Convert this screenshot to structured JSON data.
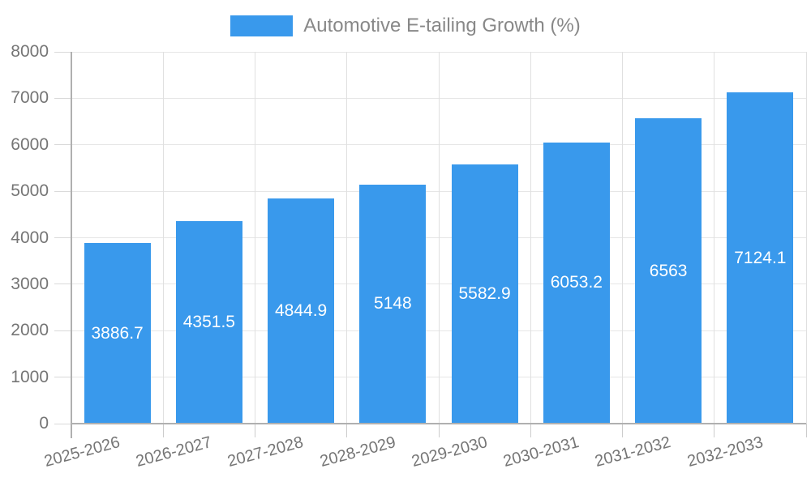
{
  "chart_data": {
    "type": "bar",
    "title": "Automotive E-tailing Growth (%)",
    "legend": {
      "position": "top",
      "entries": [
        {
          "label": "Automotive E-tailing Growth (%)",
          "color": "#3999EC"
        }
      ]
    },
    "categories": [
      "2025-2026",
      "2026-2027",
      "2027-2028",
      "2028-2029",
      "2029-2030",
      "2030-2031",
      "2031-2032",
      "2032-2033"
    ],
    "values": [
      3886.7,
      4351.5,
      4844.9,
      5148,
      5582.9,
      6053.2,
      6563,
      7124.1
    ],
    "bar_value_labels": [
      "3886.7",
      "4351.5",
      "4844.9",
      "5148",
      "5582.9",
      "6053.2",
      "6563",
      "7124.1"
    ],
    "xlabel": "",
    "ylabel": "",
    "ylim": [
      0,
      8000
    ],
    "ytick_step": 1000,
    "ytick_labels": [
      "0",
      "1000",
      "2000",
      "3000",
      "4000",
      "5000",
      "6000",
      "7000",
      "8000"
    ],
    "grid": true,
    "x_tick_label_rotation_deg": -15,
    "colors": {
      "bar": "#3999EC",
      "bar_value_text": "#FFFFFF",
      "axis_text": "#757575",
      "legend_text": "#888888",
      "axis_line": "#B0B0B0",
      "gridline": "#E6E6E6"
    }
  }
}
